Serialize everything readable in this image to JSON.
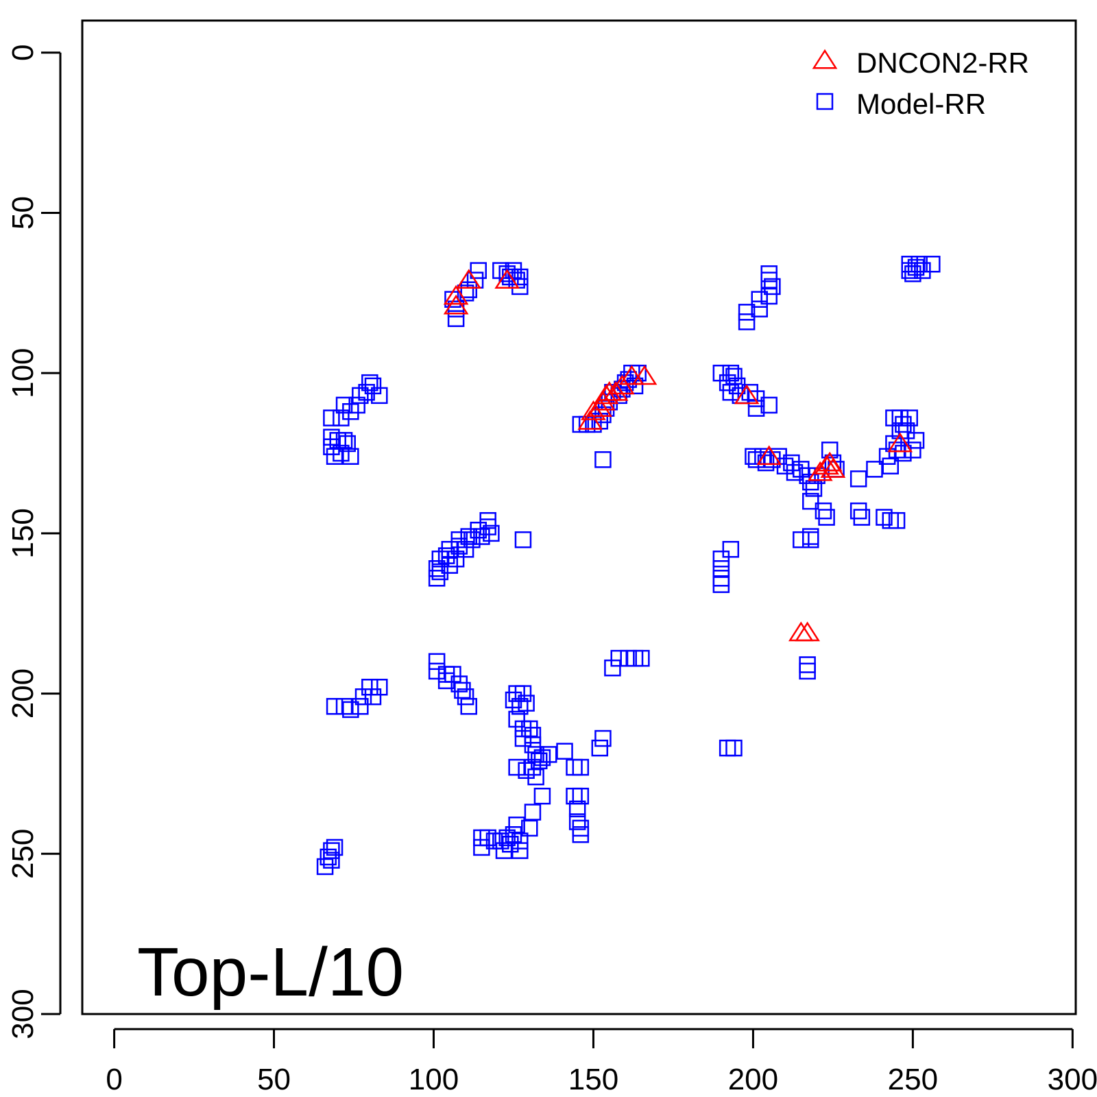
{
  "chart_data": {
    "type": "scatter",
    "title": "",
    "xlabel": "",
    "ylabel": "",
    "xlim": [
      -10,
      301
    ],
    "ylim": [
      300,
      -10
    ],
    "y_inverted": true,
    "x_ticks": [
      "0",
      "50",
      "100",
      "150",
      "200",
      "250",
      "300"
    ],
    "y_ticks": [
      "0",
      "50",
      "100",
      "150",
      "200",
      "250",
      "300"
    ],
    "annotation": "Top-L/10",
    "legend_position": "top-right",
    "grid": false,
    "series": [
      {
        "name": "DNCON2-RR",
        "marker": "triangle",
        "color": "#ff0000",
        "points": [
          [
            107,
            76
          ],
          [
            107,
            79
          ],
          [
            111,
            71
          ],
          [
            123,
            71
          ],
          [
            149,
            115
          ],
          [
            150,
            112
          ],
          [
            152,
            111
          ],
          [
            153,
            109
          ],
          [
            154,
            107
          ],
          [
            155,
            106
          ],
          [
            157,
            106
          ],
          [
            159,
            104
          ],
          [
            162,
            101
          ],
          [
            166,
            101
          ],
          [
            198,
            107
          ],
          [
            205,
            126
          ],
          [
            215,
            181
          ],
          [
            217,
            181
          ],
          [
            221,
            131
          ],
          [
            223,
            129
          ],
          [
            224,
            128
          ],
          [
            225,
            130
          ],
          [
            246,
            122
          ]
        ]
      },
      {
        "name": "Model-RR",
        "marker": "square",
        "color": "#0000ff",
        "points": [
          [
            67,
            251
          ],
          [
            68,
            249
          ],
          [
            69,
            248
          ],
          [
            66,
            254
          ],
          [
            68,
            252
          ],
          [
            68,
            114
          ],
          [
            68,
            120
          ],
          [
            68,
            123
          ],
          [
            70,
            121
          ],
          [
            69,
            126
          ],
          [
            71,
            125
          ],
          [
            72,
            121
          ],
          [
            73,
            122
          ],
          [
            74,
            126
          ],
          [
            71,
            114
          ],
          [
            72,
            110
          ],
          [
            74,
            112
          ],
          [
            76,
            110
          ],
          [
            77,
            107
          ],
          [
            79,
            106
          ],
          [
            80,
            103
          ],
          [
            81,
            104
          ],
          [
            83,
            107
          ],
          [
            69,
            204
          ],
          [
            72,
            204
          ],
          [
            74,
            205
          ],
          [
            77,
            204
          ],
          [
            78,
            201
          ],
          [
            80,
            198
          ],
          [
            81,
            201
          ],
          [
            83,
            198
          ],
          [
            101,
            161
          ],
          [
            101,
            164
          ],
          [
            102,
            158
          ],
          [
            102,
            162
          ],
          [
            104,
            157
          ],
          [
            105,
            160
          ],
          [
            105,
            155
          ],
          [
            107,
            158
          ],
          [
            108,
            154
          ],
          [
            108,
            152
          ],
          [
            110,
            155
          ],
          [
            111,
            151
          ],
          [
            112,
            152
          ],
          [
            114,
            149
          ],
          [
            115,
            151
          ],
          [
            117,
            148
          ],
          [
            117,
            146
          ],
          [
            118,
            150
          ],
          [
            128,
            152
          ],
          [
            101,
            190
          ],
          [
            101,
            193
          ],
          [
            104,
            194
          ],
          [
            104,
            196
          ],
          [
            106,
            194
          ],
          [
            108,
            197
          ],
          [
            109,
            199
          ],
          [
            110,
            201
          ],
          [
            111,
            204
          ],
          [
            106,
            77
          ],
          [
            107,
            80
          ],
          [
            107,
            83
          ],
          [
            110,
            75
          ],
          [
            111,
            74
          ],
          [
            113,
            71
          ],
          [
            114,
            68
          ],
          [
            121,
            68
          ],
          [
            123,
            69
          ],
          [
            124,
            70
          ],
          [
            125,
            68
          ],
          [
            126,
            71
          ],
          [
            127,
            73
          ],
          [
            127,
            70
          ],
          [
            125,
            202
          ],
          [
            126,
            200
          ],
          [
            127,
            204
          ],
          [
            128,
            200
          ],
          [
            129,
            203
          ],
          [
            126,
            208
          ],
          [
            128,
            211
          ],
          [
            128,
            214
          ],
          [
            130,
            211
          ],
          [
            131,
            213
          ],
          [
            131,
            216
          ],
          [
            132,
            219
          ],
          [
            133,
            221
          ],
          [
            131,
            223
          ],
          [
            129,
            224
          ],
          [
            126,
            223
          ],
          [
            132,
            226
          ],
          [
            134,
            220
          ],
          [
            136,
            219
          ],
          [
            141,
            218
          ],
          [
            144,
            223
          ],
          [
            146,
            223
          ],
          [
            152,
            217
          ],
          [
            153,
            214
          ],
          [
            134,
            232
          ],
          [
            131,
            237
          ],
          [
            130,
            242
          ],
          [
            144,
            232
          ],
          [
            146,
            232
          ],
          [
            145,
            236
          ],
          [
            145,
            240
          ],
          [
            146,
            242
          ],
          [
            146,
            244
          ],
          [
            115,
            245
          ],
          [
            115,
            248
          ],
          [
            117,
            245
          ],
          [
            121,
            246
          ],
          [
            122,
            249
          ],
          [
            123,
            245
          ],
          [
            124,
            247
          ],
          [
            125,
            244
          ],
          [
            126,
            241
          ],
          [
            127,
            246
          ],
          [
            127,
            249
          ],
          [
            119,
            246
          ],
          [
            146,
            116
          ],
          [
            148,
            116
          ],
          [
            150,
            116
          ],
          [
            152,
            115
          ],
          [
            153,
            113
          ],
          [
            154,
            111
          ],
          [
            155,
            109
          ],
          [
            156,
            106
          ],
          [
            158,
            107
          ],
          [
            159,
            105
          ],
          [
            160,
            103
          ],
          [
            161,
            102
          ],
          [
            162,
            100
          ],
          [
            163,
            104
          ],
          [
            164,
            100
          ],
          [
            153,
            127
          ],
          [
            156,
            192
          ],
          [
            158,
            189
          ],
          [
            161,
            189
          ],
          [
            163,
            189
          ],
          [
            165,
            189
          ],
          [
            190,
            100
          ],
          [
            192,
            103
          ],
          [
            193,
            100
          ],
          [
            194,
            101
          ],
          [
            193,
            106
          ],
          [
            195,
            104
          ],
          [
            196,
            107
          ],
          [
            199,
            106
          ],
          [
            201,
            108
          ],
          [
            201,
            111
          ],
          [
            205,
            110
          ],
          [
            198,
            81
          ],
          [
            198,
            84
          ],
          [
            202,
            80
          ],
          [
            202,
            77
          ],
          [
            205,
            76
          ],
          [
            205,
            69
          ],
          [
            206,
            73
          ],
          [
            205,
            71
          ],
          [
            190,
            158
          ],
          [
            190,
            161
          ],
          [
            190,
            164
          ],
          [
            190,
            166
          ],
          [
            193,
            155
          ],
          [
            192,
            217
          ],
          [
            194,
            217
          ],
          [
            200,
            126
          ],
          [
            201,
            127
          ],
          [
            203,
            126
          ],
          [
            204,
            128
          ],
          [
            206,
            127
          ],
          [
            208,
            126
          ],
          [
            210,
            129
          ],
          [
            212,
            128
          ],
          [
            213,
            131
          ],
          [
            215,
            130
          ],
          [
            217,
            132
          ],
          [
            218,
            134
          ],
          [
            218,
            140
          ],
          [
            219,
            136
          ],
          [
            220,
            132
          ],
          [
            222,
            143
          ],
          [
            223,
            145
          ],
          [
            224,
            124
          ],
          [
            225,
            128
          ],
          [
            226,
            130
          ],
          [
            215,
            152
          ],
          [
            218,
            152
          ],
          [
            218,
            151
          ],
          [
            217,
            191
          ],
          [
            217,
            193
          ],
          [
            233,
            133
          ],
          [
            233,
            143
          ],
          [
            234,
            145
          ],
          [
            238,
            130
          ],
          [
            241,
            145
          ],
          [
            242,
            126
          ],
          [
            243,
            146
          ],
          [
            245,
            146
          ],
          [
            243,
            129
          ],
          [
            244,
            122
          ],
          [
            245,
            124
          ],
          [
            246,
            118
          ],
          [
            244,
            114
          ],
          [
            246,
            114
          ],
          [
            247,
            116
          ],
          [
            247,
            125
          ],
          [
            248,
            118
          ],
          [
            250,
            124
          ],
          [
            251,
            121
          ],
          [
            249,
            114
          ],
          [
            249,
            68
          ],
          [
            250,
            69
          ],
          [
            251,
            67
          ],
          [
            252,
            66
          ],
          [
            253,
            68
          ],
          [
            256,
            66
          ],
          [
            249,
            66
          ]
        ]
      }
    ]
  }
}
